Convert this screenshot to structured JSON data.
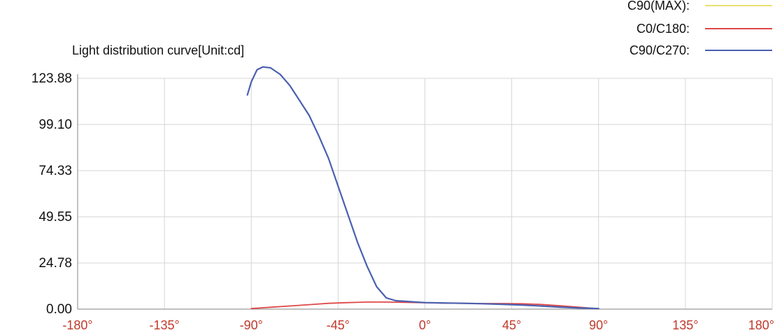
{
  "chart_data": {
    "type": "line",
    "title": "Light distribution curve[Unit:cd]",
    "xlabel": "",
    "ylabel": "",
    "x_ticks": [
      "-180°",
      "-135°",
      "-90°",
      "-45°",
      "0°",
      "45°",
      "90°",
      "135°",
      "180°"
    ],
    "x_tick_values": [
      -180,
      -135,
      -90,
      -45,
      0,
      45,
      90,
      135,
      180
    ],
    "y_ticks": [
      "0.00",
      "24.78",
      "49.55",
      "74.33",
      "99.10",
      "123.88"
    ],
    "y_tick_values": [
      0,
      24.78,
      49.55,
      74.33,
      99.1,
      123.88
    ],
    "xlim": [
      -180,
      180
    ],
    "ylim": [
      0,
      123.88
    ],
    "grid": true,
    "legend_position": "top-right",
    "series": [
      {
        "name": "C90(MAX):",
        "color": "#e8e070",
        "x": [],
        "y": []
      },
      {
        "name": "C0/C180:",
        "color": "#e04848",
        "x": [
          -90,
          -80,
          -70,
          -60,
          -50,
          -40,
          -30,
          -20,
          -10,
          0,
          10,
          20,
          30,
          40,
          50,
          60,
          70,
          80,
          90
        ],
        "y": [
          0.3,
          1.0,
          1.7,
          2.4,
          3.1,
          3.5,
          3.8,
          3.8,
          3.6,
          3.4,
          3.2,
          3.1,
          3.0,
          3.0,
          2.9,
          2.5,
          1.8,
          1.0,
          0.2
        ]
      },
      {
        "name": "C90/C270:",
        "color": "#4a60b0",
        "x": [
          -92,
          -90,
          -87,
          -84,
          -80,
          -75,
          -70,
          -65,
          -60,
          -55,
          -50,
          -45,
          -40,
          -35,
          -30,
          -25,
          -20,
          -15,
          -10,
          -5,
          0,
          10,
          20,
          30,
          40,
          50,
          60,
          70,
          80,
          90
        ],
        "y": [
          115,
          122,
          128.5,
          130,
          129.5,
          126,
          120,
          112,
          104,
          93,
          81,
          66,
          51,
          36,
          23,
          12,
          6,
          4.5,
          4.2,
          3.8,
          3.5,
          3.3,
          3.1,
          2.9,
          2.6,
          2.2,
          1.7,
          1.1,
          0.6,
          0.3
        ]
      }
    ]
  }
}
